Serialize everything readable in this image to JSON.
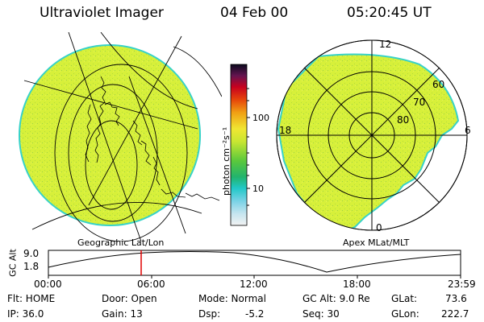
{
  "header": {
    "instrument": "Ultraviolet Imager",
    "date": "04 Feb 00",
    "time": "05:20:45 UT"
  },
  "colorbar": {
    "unit_label": "photon cm⁻²s⁻¹",
    "ticks": [
      "100",
      "10"
    ]
  },
  "left_panel": {
    "caption": "Geographic Lat/Lon"
  },
  "right_panel": {
    "caption": "Apex MLat/MLT",
    "mlt_labels": [
      "12",
      "18",
      "6",
      "0"
    ],
    "lat_labels": [
      "60",
      "70",
      "80"
    ]
  },
  "timeline": {
    "axis_label": "GC Alt",
    "y_ticks": [
      "9.0",
      "1.8"
    ],
    "x_ticks": [
      "00:00",
      "06:00",
      "12:00",
      "18:00",
      "23:59"
    ],
    "marker_time": "05:20:45"
  },
  "status": {
    "flt": "Flt: HOME",
    "ip": "IP: 36.0",
    "door": "Door: Open",
    "gain": "Gain: 13",
    "mode": "Mode: Normal",
    "dsp_label": "Dsp:",
    "dsp_value": "-5.2",
    "gc_alt": "GC Alt: 9.0 Re",
    "seq": "Seq: 30",
    "glat_label": "GLat:",
    "glat_value": "73.6",
    "glon_label": "GLon:",
    "glon_value": "222.7"
  },
  "colors": {
    "image_fill": "#d7f03a",
    "image_edge": "#37d2c8",
    "marker": "#e00000"
  }
}
